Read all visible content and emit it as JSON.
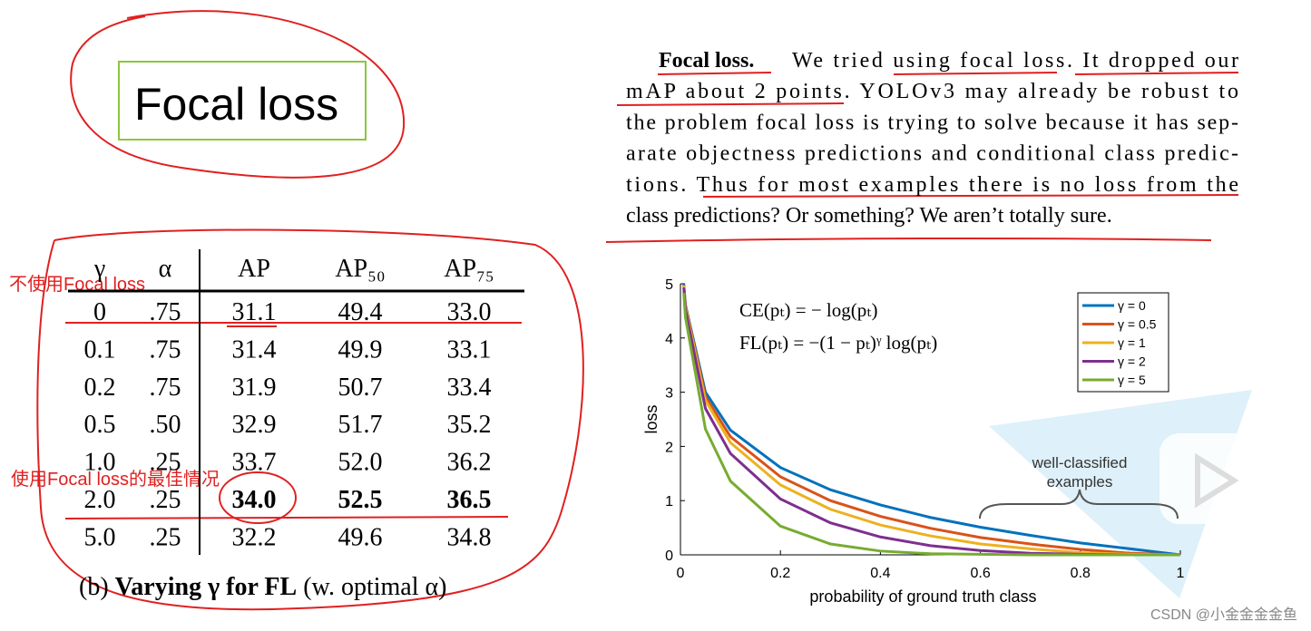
{
  "title_box": {
    "text": "Focal loss"
  },
  "paragraph": {
    "lead": "Focal loss.",
    "lines": [
      "We tried using focal loss. It dropped our",
      "mAP about 2 points. YOLOv3 may already be robust to",
      "the problem focal loss is trying to solve because it has sep-",
      "arate objectness predictions and conditional class predic-",
      "tions. Thus for most examples there is no loss from the",
      "class predictions? Or something? We aren’t totally sure."
    ]
  },
  "table": {
    "header": [
      "γ",
      "α",
      "AP",
      "AP₅₀",
      "AP₇₅"
    ],
    "rows": [
      [
        "0",
        ".75",
        "31.1",
        "49.4",
        "33.0"
      ],
      [
        "0.1",
        ".75",
        "31.4",
        "49.9",
        "33.1"
      ],
      [
        "0.2",
        ".75",
        "31.9",
        "50.7",
        "33.4"
      ],
      [
        "0.5",
        ".50",
        "32.9",
        "51.7",
        "35.2"
      ],
      [
        "1.0",
        ".25",
        "33.7",
        "52.0",
        "36.2"
      ],
      [
        "2.0",
        ".25",
        "34.0",
        "52.5",
        "36.5"
      ],
      [
        "5.0",
        ".25",
        "32.2",
        "49.6",
        "34.8"
      ]
    ],
    "caption": [
      "(b)",
      "Varying γ for FL",
      "(w. optimal α)"
    ]
  },
  "annotations": [
    "不使用Focal loss",
    "使用Focal loss的最佳情况"
  ],
  "watermark": "CSDN @小金金金金鱼",
  "chart_data": {
    "type": "line",
    "xlabel": "probability of ground truth class",
    "ylabel": "loss",
    "equations": [
      "CE(pₜ) = − log(pₜ)",
      "FL(pₜ) = −(1 − pₜ)ᵞ log(pₜ)"
    ],
    "annotation": [
      "well-classified",
      "examples"
    ],
    "x": [
      0.0067,
      0.01,
      0.05,
      0.1,
      0.2,
      0.3,
      0.4,
      0.5,
      0.6,
      0.7,
      0.8,
      0.9,
      1
    ],
    "series": [
      {
        "name": "γ = 0",
        "color": "#0072bd",
        "values": [
          5.0,
          4.61,
          3.0,
          2.3,
          1.61,
          1.2,
          0.92,
          0.69,
          0.51,
          0.36,
          0.22,
          0.11,
          0
        ]
      },
      {
        "name": "γ = 0.5",
        "color": "#d95319",
        "values": [
          4.98,
          4.59,
          2.92,
          2.18,
          1.44,
          1.0,
          0.71,
          0.49,
          0.32,
          0.2,
          0.1,
          0.03,
          0
        ]
      },
      {
        "name": "γ = 1",
        "color": "#edb120",
        "values": [
          4.97,
          4.56,
          2.85,
          2.07,
          1.29,
          0.84,
          0.55,
          0.35,
          0.2,
          0.11,
          0.04,
          0.01,
          0
        ]
      },
      {
        "name": "γ = 2",
        "color": "#7e2f8e",
        "values": [
          4.93,
          4.52,
          2.7,
          1.87,
          1.03,
          0.59,
          0.33,
          0.17,
          0.08,
          0.03,
          0.01,
          0,
          0
        ]
      },
      {
        "name": "γ = 5",
        "color": "#77ac30",
        "values": [
          4.83,
          4.38,
          2.32,
          1.36,
          0.53,
          0.2,
          0.07,
          0.02,
          0.01,
          0,
          0,
          0,
          0
        ]
      }
    ],
    "xlim": [
      0,
      1
    ],
    "ylim": [
      0,
      5
    ],
    "xticks": [
      0,
      0.2,
      0.4,
      0.6,
      0.8,
      1
    ],
    "yticks": [
      0,
      1,
      2,
      3,
      4,
      5
    ],
    "legend": "upper right"
  }
}
